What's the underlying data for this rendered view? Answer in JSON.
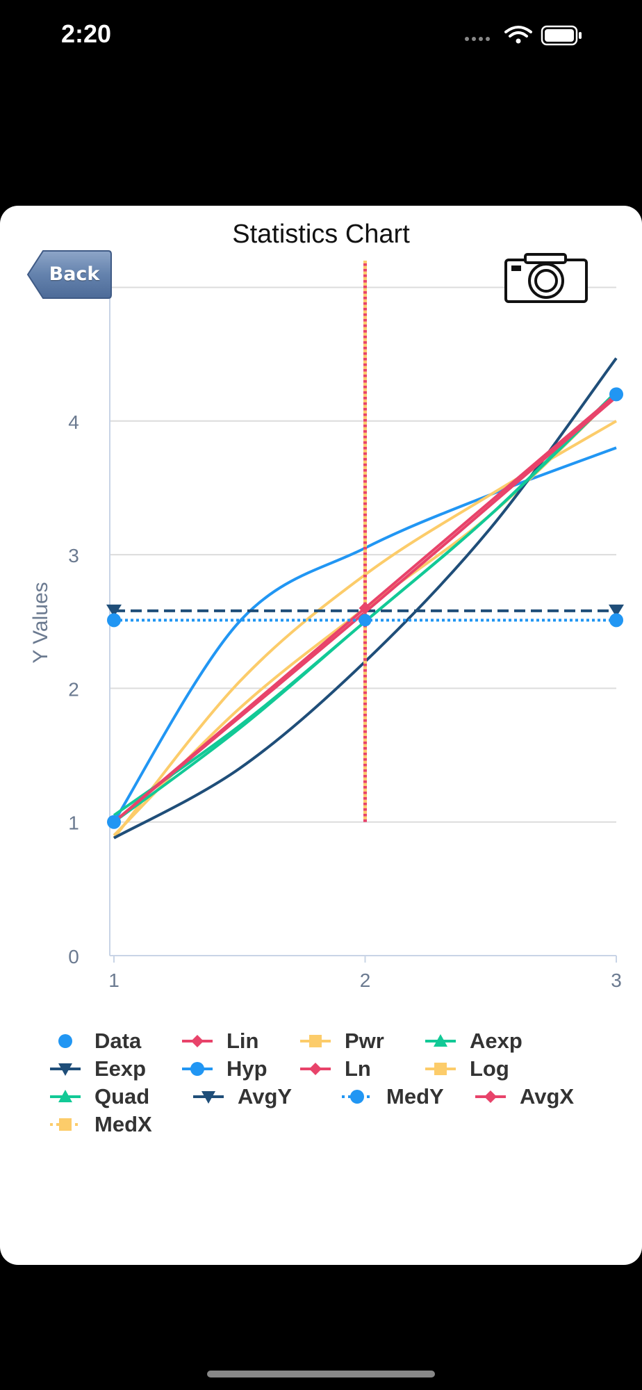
{
  "status_bar": {
    "time": "2:20"
  },
  "header": {
    "title": "Statistics Chart",
    "back_label": "Back"
  },
  "colors": {
    "data": "#2196f3",
    "lin": "#e8436a",
    "pwr": "#fccc6a",
    "aexp": "#12c996",
    "eexp": "#1f4e79",
    "hyp": "#2196f3",
    "ln": "#e8436a",
    "log": "#fccc6a",
    "quad": "#12c996",
    "grid": "#dcdcdc",
    "axis": "#c8d4e6",
    "tick": "#6b7a90"
  },
  "chart_data": {
    "type": "line",
    "title": "Statistics Chart",
    "xlabel": "",
    "ylabel": "Y Values",
    "xlim": [
      1,
      3
    ],
    "ylim": [
      0,
      5
    ],
    "x_ticks": [
      "1",
      "2",
      "3"
    ],
    "y_ticks": [
      "0",
      "1",
      "2",
      "3",
      "4"
    ],
    "grid": true,
    "legend_position": "bottom",
    "points": [
      {
        "x": 1,
        "y": 1.0
      },
      {
        "x": 3,
        "y": 4.2
      }
    ],
    "series": [
      {
        "name": "Data",
        "type": "scatter",
        "x": [
          1,
          3
        ],
        "y": [
          1.0,
          4.2
        ]
      },
      {
        "name": "Lin",
        "x": [
          1,
          2,
          3
        ],
        "y": [
          1.0,
          2.6,
          4.2
        ]
      },
      {
        "name": "Pwr",
        "x": [
          1,
          1.5,
          2,
          2.5,
          3
        ],
        "y": [
          0.9,
          1.85,
          2.6,
          3.3,
          4.2
        ]
      },
      {
        "name": "Aexp",
        "x": [
          1,
          1.5,
          2,
          2.5,
          3
        ],
        "y": [
          1.0,
          1.7,
          2.5,
          3.3,
          4.2
        ]
      },
      {
        "name": "Eexp",
        "x": [
          1,
          1.5,
          2,
          2.5,
          3
        ],
        "y": [
          0.88,
          1.4,
          2.2,
          3.2,
          4.47
        ]
      },
      {
        "name": "Hyp",
        "x": [
          1,
          1.5,
          2,
          2.5,
          3
        ],
        "y": [
          1.0,
          2.5,
          3.05,
          3.45,
          3.8
        ]
      },
      {
        "name": "Ln",
        "x": [
          1,
          2,
          3
        ],
        "y": [
          1.0,
          2.57,
          4.18
        ]
      },
      {
        "name": "Log",
        "x": [
          1,
          1.5,
          2,
          2.5,
          3
        ],
        "y": [
          0.88,
          2.05,
          2.85,
          3.45,
          4.0
        ]
      },
      {
        "name": "Quad",
        "x": [
          1,
          1.5,
          2,
          2.5,
          3
        ],
        "y": [
          1.05,
          1.72,
          2.5,
          3.3,
          4.22
        ]
      },
      {
        "name": "AvgY",
        "x": [
          1,
          3
        ],
        "y": [
          2.58,
          2.58
        ]
      },
      {
        "name": "MedY",
        "x": [
          1,
          3
        ],
        "y": [
          2.51,
          2.51
        ]
      },
      {
        "name": "AvgX",
        "x": [
          2,
          2
        ],
        "y": [
          1.0,
          5.2
        ]
      },
      {
        "name": "MedX",
        "x": [
          2,
          2
        ],
        "y": [
          1.0,
          5.2
        ]
      }
    ]
  },
  "legend": [
    [
      "Data",
      "Lin",
      "Pwr",
      "Aexp"
    ],
    [
      "Eexp",
      "Hyp",
      "Ln",
      "Log"
    ],
    [
      "Quad",
      "AvgY",
      "MedY",
      "AvgX"
    ],
    [
      "MedX"
    ]
  ]
}
